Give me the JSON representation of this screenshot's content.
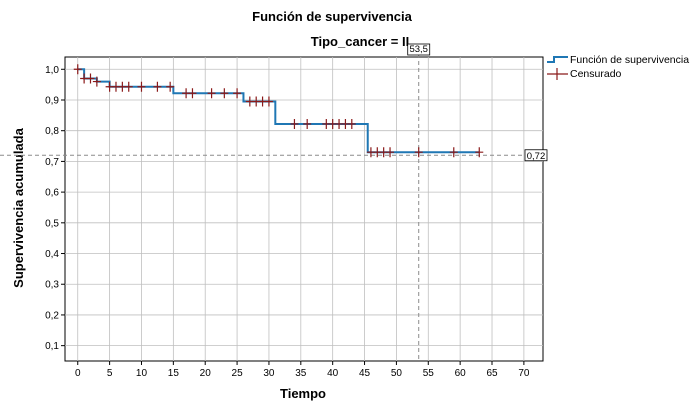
{
  "chart_data": {
    "type": "line",
    "title": "Función de supervivencia",
    "subtitle": "Tipo_cancer = II",
    "xlabel": "Tiempo",
    "ylabel": "Supervivencia acumulada",
    "xlim": [
      -2,
      73
    ],
    "ylim": [
      0.05,
      1.04
    ],
    "x_ticks": [
      0,
      5,
      10,
      15,
      20,
      25,
      30,
      35,
      40,
      45,
      50,
      55,
      60,
      65,
      70
    ],
    "y_ticks": [
      0.1,
      0.2,
      0.3,
      0.4,
      0.5,
      0.6,
      0.7,
      0.8,
      0.9,
      1.0
    ],
    "x_tick_labels": [
      "0",
      "5",
      "10",
      "15",
      "20",
      "25",
      "30",
      "35",
      "40",
      "45",
      "50",
      "55",
      "60",
      "65",
      "70"
    ],
    "y_tick_labels": [
      "0,1",
      "0,2",
      "0,3",
      "0,4",
      "0,5",
      "0,6",
      "0,7",
      "0,8",
      "0,9",
      "1,0"
    ],
    "grid": true,
    "legend_position": "top-right",
    "series": [
      {
        "name": "Función de supervivencia",
        "color": "#1f77b4",
        "steps_x": [
          0,
          1,
          3,
          5,
          15,
          26,
          31,
          45.5,
          63
        ],
        "steps_y": [
          1.0,
          0.97,
          0.96,
          0.943,
          0.922,
          0.895,
          0.822,
          0.73,
          0.73
        ]
      },
      {
        "name": "Censurado",
        "color": "#8b1a1a",
        "marker": "plus",
        "x": [
          0,
          1,
          2,
          3,
          5,
          6,
          7,
          8,
          10,
          12.5,
          14.5,
          17,
          18,
          21,
          23,
          25,
          27,
          28,
          29,
          30,
          34,
          36,
          39,
          40,
          41,
          42,
          43,
          46,
          47,
          48,
          49,
          53.5,
          59,
          63
        ],
        "y": [
          1.0,
          0.97,
          0.97,
          0.96,
          0.943,
          0.943,
          0.943,
          0.943,
          0.943,
          0.943,
          0.943,
          0.922,
          0.922,
          0.922,
          0.922,
          0.922,
          0.895,
          0.895,
          0.895,
          0.895,
          0.822,
          0.822,
          0.822,
          0.822,
          0.822,
          0.822,
          0.822,
          0.73,
          0.73,
          0.73,
          0.73,
          0.73,
          0.73,
          0.73
        ]
      }
    ],
    "reference_lines": [
      {
        "axis": "x",
        "value": 53.5,
        "label": "53,5"
      },
      {
        "axis": "y",
        "value": 0.72,
        "label": "0,72"
      }
    ]
  }
}
